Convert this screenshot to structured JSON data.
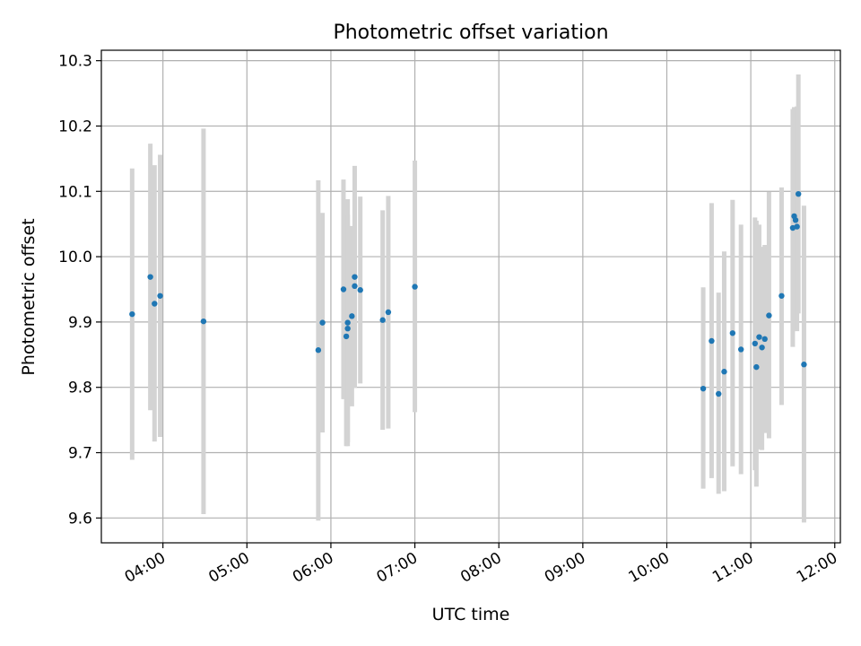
{
  "chart_data": {
    "type": "scatter",
    "title": "Photometric offset variation",
    "xlabel": "UTC time",
    "ylabel": "Photometric offset",
    "x_axis_kind": "time",
    "xlim": [
      "03:16",
      "12:04"
    ],
    "ylim": [
      9.562,
      10.316
    ],
    "x_ticks": [
      "04:00",
      "05:00",
      "06:00",
      "07:00",
      "08:00",
      "09:00",
      "10:00",
      "11:00",
      "12:00"
    ],
    "y_ticks": [
      9.6,
      9.7,
      9.8,
      9.9,
      10.0,
      10.1,
      10.2,
      10.3
    ],
    "grid": true,
    "colors": {
      "point": "#1f77b4",
      "errorbar": "#d3d3d3",
      "grid": "#b0b0b0"
    },
    "series": [
      {
        "points": [
          {
            "t": "03:38",
            "y": 9.912,
            "lo": 9.689,
            "hi": 10.135
          },
          {
            "t": "03:51",
            "y": 9.969,
            "lo": 9.765,
            "hi": 10.173
          },
          {
            "t": "03:54",
            "y": 9.928,
            "lo": 9.717,
            "hi": 10.14
          },
          {
            "t": "03:58",
            "y": 9.94,
            "lo": 9.724,
            "hi": 10.156
          },
          {
            "t": "04:29",
            "y": 9.901,
            "lo": 9.606,
            "hi": 10.196
          },
          {
            "t": "05:51",
            "y": 9.857,
            "lo": 9.596,
            "hi": 10.117
          },
          {
            "t": "05:54",
            "y": 9.899,
            "lo": 9.731,
            "hi": 10.067
          },
          {
            "t": "06:09",
            "y": 9.95,
            "lo": 9.782,
            "hi": 10.118
          },
          {
            "t": "06:11",
            "y": 9.878,
            "lo": 9.71,
            "hi": 10.046
          },
          {
            "t": "06:12",
            "y": 9.899,
            "lo": 9.71,
            "hi": 10.088
          },
          {
            "t": "06:12",
            "y": 9.89,
            "lo": 9.716,
            "hi": 10.064
          },
          {
            "t": "06:15",
            "y": 9.909,
            "lo": 9.771,
            "hi": 10.047
          },
          {
            "t": "06:17",
            "y": 9.969,
            "lo": 9.799,
            "hi": 10.139
          },
          {
            "t": "06:17",
            "y": 9.955,
            "lo": 9.818,
            "hi": 10.092
          },
          {
            "t": "06:21",
            "y": 9.949,
            "lo": 9.806,
            "hi": 10.092
          },
          {
            "t": "06:37",
            "y": 9.903,
            "lo": 9.735,
            "hi": 10.071
          },
          {
            "t": "06:41",
            "y": 9.915,
            "lo": 9.737,
            "hi": 10.093
          },
          {
            "t": "07:00",
            "y": 9.954,
            "lo": 9.762,
            "hi": 10.147
          },
          {
            "t": "10:26",
            "y": 9.798,
            "lo": 9.645,
            "hi": 9.953
          },
          {
            "t": "10:32",
            "y": 9.871,
            "lo": 9.661,
            "hi": 10.082
          },
          {
            "t": "10:37",
            "y": 9.79,
            "lo": 9.637,
            "hi": 9.945
          },
          {
            "t": "10:41",
            "y": 9.824,
            "lo": 9.641,
            "hi": 10.008
          },
          {
            "t": "10:47",
            "y": 9.883,
            "lo": 9.679,
            "hi": 10.087
          },
          {
            "t": "10:53",
            "y": 9.858,
            "lo": 9.667,
            "hi": 10.049
          },
          {
            "t": "11:03",
            "y": 9.867,
            "lo": 9.673,
            "hi": 10.06
          },
          {
            "t": "11:04",
            "y": 9.831,
            "lo": 9.648,
            "hi": 10.055
          },
          {
            "t": "11:06",
            "y": 9.877,
            "lo": 9.705,
            "hi": 10.049
          },
          {
            "t": "11:08",
            "y": 9.861,
            "lo": 9.704,
            "hi": 10.015
          },
          {
            "t": "11:10",
            "y": 9.874,
            "lo": 9.73,
            "hi": 10.018
          },
          {
            "t": "11:13",
            "y": 9.91,
            "lo": 9.722,
            "hi": 10.099
          },
          {
            "t": "11:22",
            "y": 9.94,
            "lo": 9.773,
            "hi": 10.106
          },
          {
            "t": "11:30",
            "y": 10.044,
            "lo": 9.862,
            "hi": 10.226
          },
          {
            "t": "11:31",
            "y": 10.062,
            "lo": 9.888,
            "hi": 10.229
          },
          {
            "t": "11:32",
            "y": 10.056,
            "lo": 9.896,
            "hi": 10.216
          },
          {
            "t": "11:33",
            "y": 10.046,
            "lo": 9.886,
            "hi": 10.23
          },
          {
            "t": "11:34",
            "y": 10.096,
            "lo": 9.913,
            "hi": 10.279
          },
          {
            "t": "11:38",
            "y": 9.835,
            "lo": 9.593,
            "hi": 10.078
          }
        ]
      }
    ]
  }
}
